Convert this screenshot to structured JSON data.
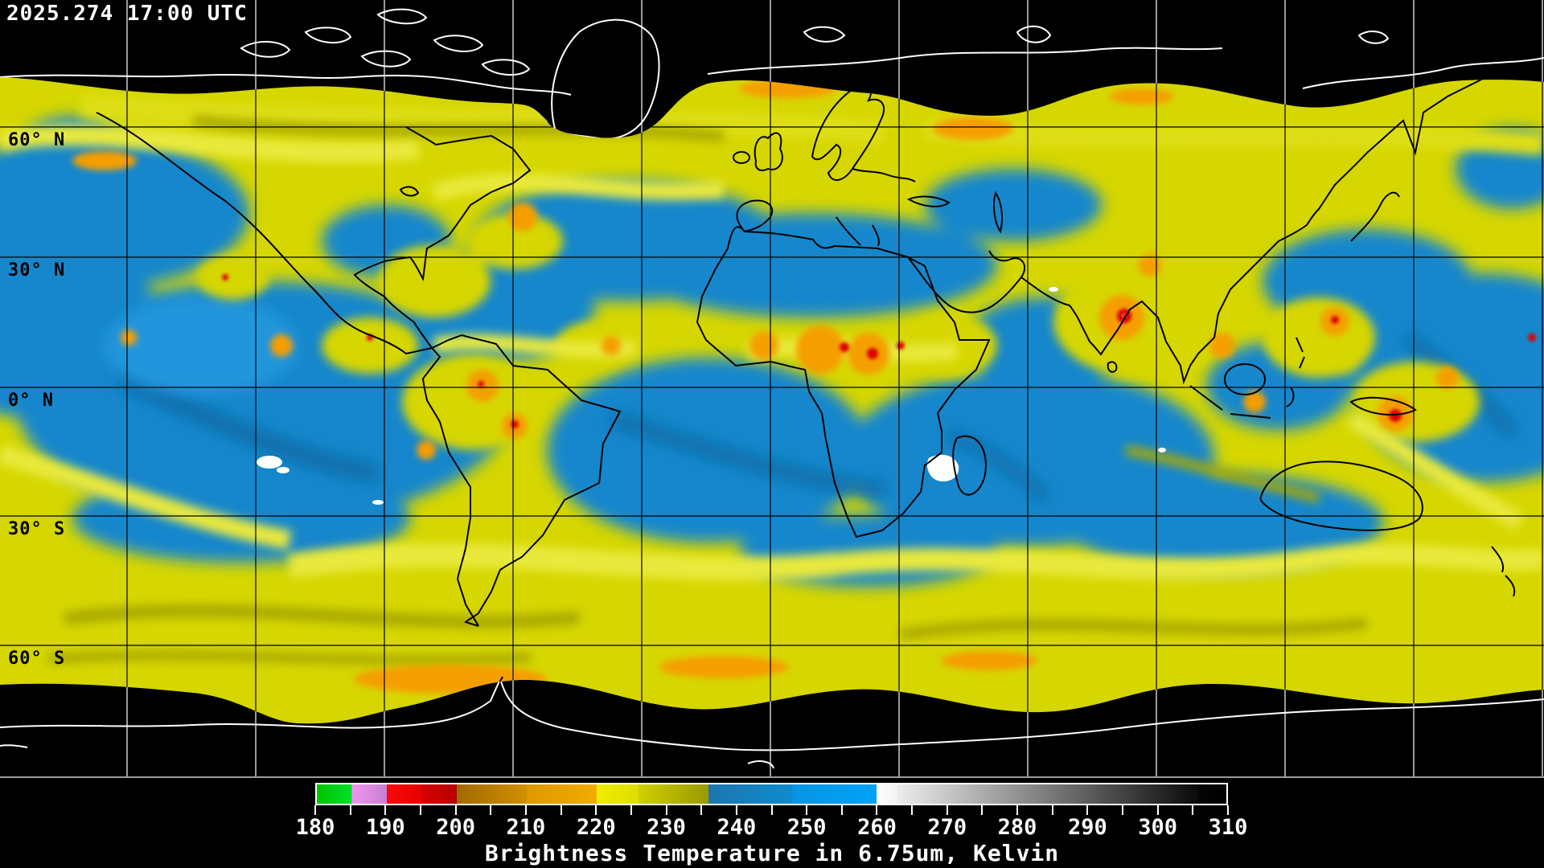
{
  "header": {
    "timestamp": "2025.274 17:00 UTC"
  },
  "map": {
    "lat_labels": [
      "60° N",
      "30° N",
      "0° N",
      "30° S",
      "60° S"
    ],
    "palette": {
      "background": "#000000",
      "moist_yellow": "#d6d600",
      "olive": "#a9a900",
      "clear_blue": "#1787cc",
      "deep_convection_orange": "#f59e00",
      "coldest_red": "#dd0000",
      "warm_white": "#ffffff",
      "coastline_over_data": "#000000",
      "coastline_polar": "#ffffff"
    }
  },
  "colorbar": {
    "title": "Brightness Temperature in 6.75um, Kelvin",
    "min": 180,
    "max": 310,
    "minor_tick_step": 5,
    "major_ticks": [
      180,
      190,
      200,
      210,
      220,
      230,
      240,
      250,
      260,
      270,
      280,
      290,
      300,
      310
    ],
    "border_color": "#ffffff",
    "segments": [
      {
        "from": 180,
        "to": 185,
        "c1": "#00c400",
        "c2": "#00e02a"
      },
      {
        "from": 185,
        "to": 190,
        "c1": "#f095f0",
        "c2": "#c87fd2"
      },
      {
        "from": 190,
        "to": 195,
        "c1": "#fa0a0a",
        "c2": "#e60000"
      },
      {
        "from": 195,
        "to": 200,
        "c1": "#d40000",
        "c2": "#b80000"
      },
      {
        "from": 200,
        "to": 210,
        "c1": "#a06a00",
        "c2": "#d28f00"
      },
      {
        "from": 210,
        "to": 220,
        "c1": "#dd9900",
        "c2": "#f2ab00"
      },
      {
        "from": 220,
        "to": 226,
        "c1": "#f0ec00",
        "c2": "#dede00"
      },
      {
        "from": 226,
        "to": 236,
        "c1": "#cfcf00",
        "c2": "#9a9a00"
      },
      {
        "from": 236,
        "to": 248,
        "c1": "#1d76ad",
        "c2": "#0d8ccf"
      },
      {
        "from": 248,
        "to": 260,
        "c1": "#0795e2",
        "c2": "#00a2f8"
      },
      {
        "from": 260,
        "to": 263,
        "c1": "#ffffff",
        "c2": "#f2f2f2"
      },
      {
        "from": 263,
        "to": 306,
        "c1": "#ececec",
        "c2": "#0a0a0a"
      },
      {
        "from": 306,
        "to": 310,
        "c1": "#050505",
        "c2": "#000000"
      }
    ]
  }
}
